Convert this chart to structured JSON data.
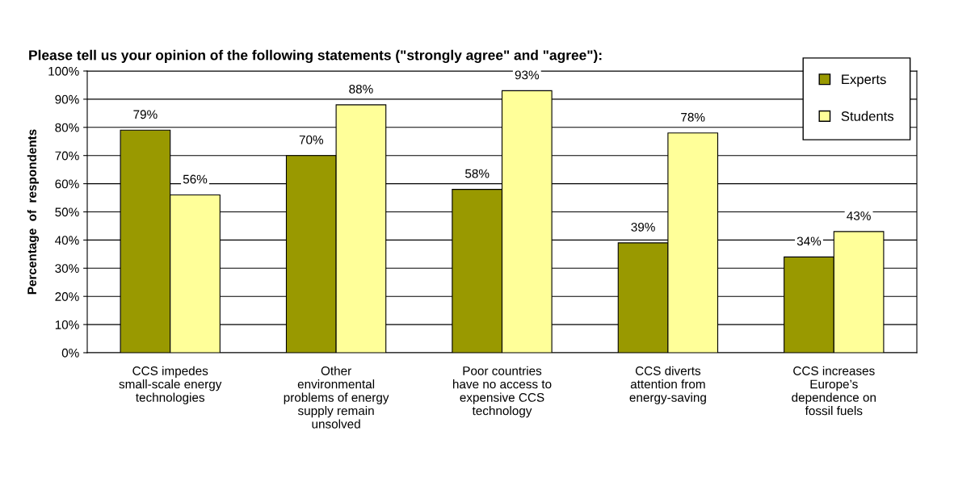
{
  "chart_data": {
    "type": "bar",
    "title": "Please tell us your opinion of the following statements (\"strongly agree\" and \"agree\"):",
    "ylabel": "Percentage  of  respondents",
    "categories": [
      "CCS impedes\nsmall-scale energy\ntechnologies",
      "Other\nenvironmental\nproblems of energy\nsupply remain\nunsolved",
      "Poor countries\nhave no access to\nexpensive CCS\ntechnology",
      "CCS diverts\nattention from\nenergy-saving",
      "CCS increases\nEurope’s\ndependence on\nfossil fuels"
    ],
    "series": [
      {
        "name": "Experts",
        "color": "#999900",
        "values": [
          79,
          70,
          58,
          39,
          34
        ],
        "value_labels": [
          "79%",
          "70%",
          "58%",
          "39%",
          "34%"
        ]
      },
      {
        "name": "Students",
        "color": "#ffff99",
        "values": [
          56,
          88,
          93,
          78,
          43
        ],
        "value_labels": [
          "56%",
          "88%",
          "93%",
          "78%",
          "43%"
        ]
      }
    ],
    "ylim": [
      0,
      100
    ],
    "yticks": [
      {
        "value": 0,
        "label": "0%"
      },
      {
        "value": 10,
        "label": "10%"
      },
      {
        "value": 20,
        "label": "20%"
      },
      {
        "value": 30,
        "label": "30%"
      },
      {
        "value": 40,
        "label": "40%"
      },
      {
        "value": 50,
        "label": "50%"
      },
      {
        "value": 60,
        "label": "60%"
      },
      {
        "value": 70,
        "label": "70%"
      },
      {
        "value": 80,
        "label": "80%"
      },
      {
        "value": 90,
        "label": "90%"
      },
      {
        "value": 100,
        "label": "100%"
      }
    ],
    "grid": "y",
    "legend": "top right"
  }
}
